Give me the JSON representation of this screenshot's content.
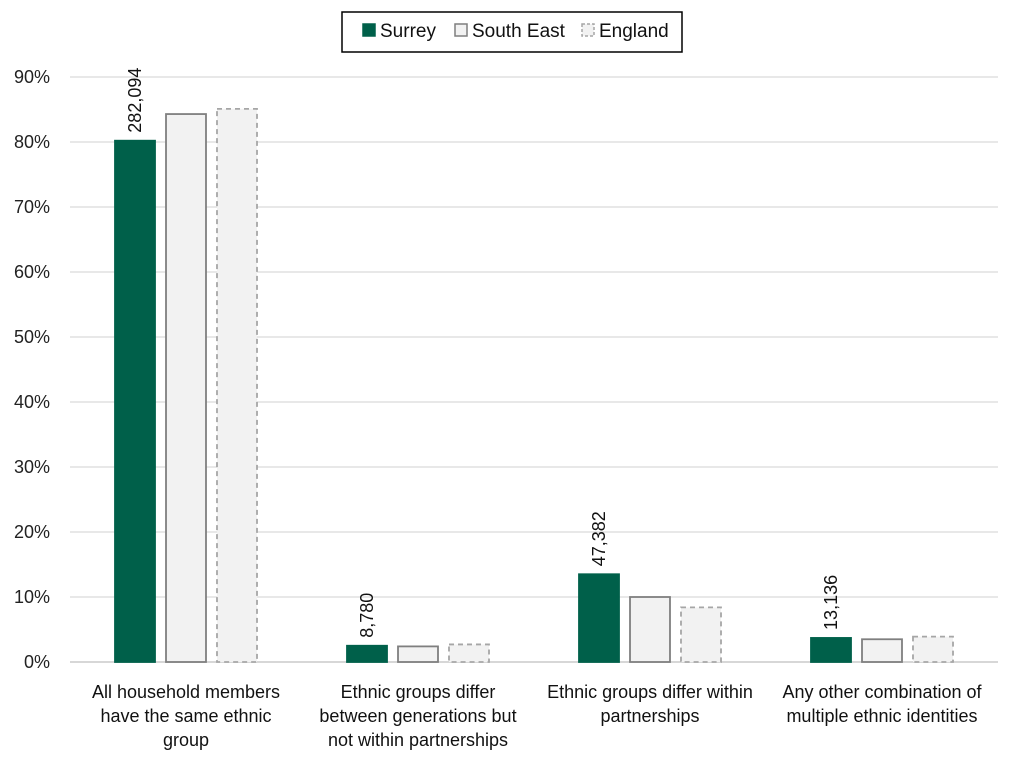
{
  "chart_data": {
    "type": "bar",
    "title": "",
    "xlabel": "",
    "ylabel": "",
    "ylim": [
      0,
      90
    ],
    "y_tick_values": [
      0,
      10,
      20,
      30,
      40,
      50,
      60,
      70,
      80,
      90
    ],
    "y_tick_labels": [
      "0%",
      "10%",
      "20%",
      "30%",
      "40%",
      "50%",
      "60%",
      "70%",
      "80%",
      "90%"
    ],
    "grid": true,
    "legend_position": "top-center",
    "categories": [
      "All household members have the same ethnic group",
      "Ethnic groups differ between generations but not within partnerships",
      "Ethnic groups differ within partnerships",
      "Any other combination of multiple ethnic identities"
    ],
    "category_label_lines": [
      [
        "All household members",
        "have the same ethnic",
        "group"
      ],
      [
        "Ethnic groups differ",
        "between generations but",
        "not within partnerships"
      ],
      [
        "Ethnic groups differ within",
        "partnerships"
      ],
      [
        "Any other combination of",
        "multiple ethnic identities"
      ]
    ],
    "series": [
      {
        "name": "Surrey",
        "values": [
          80.2,
          2.5,
          13.5,
          3.7
        ],
        "data_labels": [
          "282,094",
          "8,780",
          "47,382",
          "13,136"
        ],
        "fill": "#00604a",
        "stroke": "#00604a",
        "dash": false
      },
      {
        "name": "South East",
        "values": [
          84.3,
          2.4,
          10.0,
          3.5
        ],
        "fill": "#f2f2f2",
        "stroke": "#7f7f7f",
        "dash": false
      },
      {
        "name": "England",
        "values": [
          85.1,
          2.7,
          8.4,
          3.9
        ],
        "fill": "#f2f2f2",
        "stroke": "#a6a6a6",
        "dash": true
      }
    ]
  }
}
